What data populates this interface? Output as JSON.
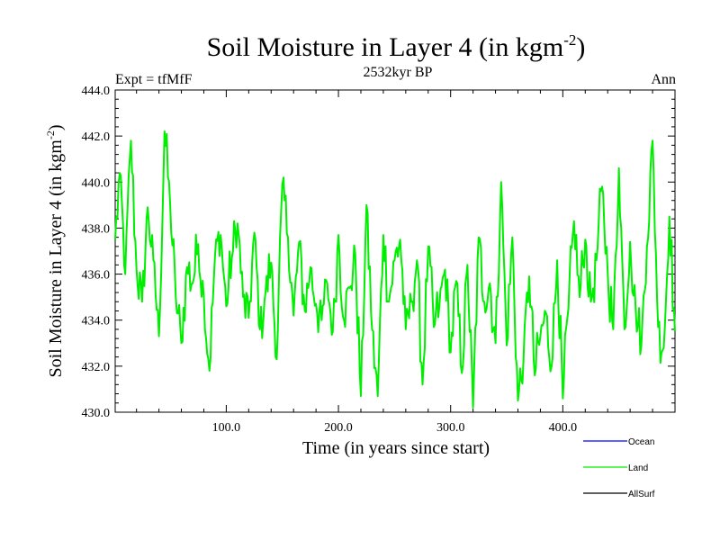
{
  "chart_data": {
    "type": "line",
    "title": "Soil Moisture in Layer 4 (in kgm",
    "title_sup": "-2",
    "title_end": ")",
    "subtitle": "2532kyr BP",
    "left_label": "Expt = tfMfF",
    "right_label": "Ann",
    "xlabel": "Time (in years since start)",
    "ylabel": "Soil Moisture in Layer 4 (in kgm",
    "ylabel_sup": "-2",
    "ylabel_end": ")",
    "xlim": [
      1,
      500
    ],
    "ylim": [
      430.0,
      444.0
    ],
    "x_ticks": [
      100,
      200,
      300,
      400
    ],
    "x_tick_labels": [
      "100.0",
      "200.0",
      "300.0",
      "400.0"
    ],
    "y_ticks": [
      430,
      432,
      434,
      436,
      438,
      440,
      442,
      444
    ],
    "y_tick_labels": [
      "430.0",
      "432.0",
      "434.0",
      "436.0",
      "438.0",
      "440.0",
      "442.0",
      "444.0"
    ],
    "legend": [
      {
        "name": "Ocean",
        "color": "#0000ff"
      },
      {
        "name": "Land",
        "color": "#00ee00"
      },
      {
        "name": "AllSurf",
        "color": "#000000"
      }
    ],
    "series": [
      {
        "name": "Land",
        "color": "#00ee00",
        "x": [
          1,
          5,
          10,
          15,
          20,
          25,
          30,
          35,
          40,
          45,
          50,
          55,
          60,
          65,
          70,
          75,
          80,
          85,
          90,
          95,
          100,
          105,
          110,
          115,
          120,
          125,
          130,
          135,
          140,
          145,
          150,
          155,
          160,
          165,
          170,
          175,
          180,
          185,
          190,
          195,
          200,
          205,
          210,
          215,
          220,
          225,
          230,
          235,
          240,
          245,
          250,
          255,
          260,
          265,
          270,
          275,
          280,
          285,
          290,
          295,
          300,
          305,
          310,
          315,
          320,
          325,
          330,
          335,
          340,
          345,
          350,
          355,
          360,
          365,
          370,
          375,
          380,
          385,
          390,
          395,
          400,
          405,
          410,
          415,
          420,
          425,
          430,
          435,
          440,
          445,
          450,
          455,
          460,
          465,
          470,
          475,
          480,
          485,
          490,
          495,
          500
        ],
        "values": [
          437.5,
          440.4,
          436.0,
          441.8,
          436.2,
          434.8,
          438.9,
          436.6,
          433.3,
          442.2,
          439.0,
          435.0,
          433.0,
          436.3,
          435.6,
          437.3,
          435.0,
          431.8,
          436.8,
          437.7,
          434.6,
          436.7,
          438.2,
          435.0,
          434.1,
          437.8,
          433.6,
          435.2,
          436.5,
          432.3,
          439.9,
          437.6,
          434.2,
          437.4,
          434.4,
          436.3,
          434.7,
          434.0,
          435.6,
          433.5,
          437.7,
          434.0,
          435.4,
          436.9,
          430.7,
          439.0,
          433.6,
          430.7,
          437.7,
          434.8,
          436.6,
          437.5,
          433.6,
          434.8,
          436.6,
          431.2,
          437.2,
          433.7,
          434.6,
          436.2,
          432.6,
          435.7,
          431.7,
          436.4,
          430.2,
          437.6,
          434.8,
          435.6,
          433.0,
          440.0,
          432.9,
          437.6,
          430.5,
          432.3,
          435.9,
          431.6,
          433.3,
          434.3,
          432.0,
          436.6,
          430.6,
          434.5,
          438.3,
          435.0,
          437.5,
          434.8,
          436.6,
          439.8,
          436.1,
          433.6,
          440.6,
          433.6,
          437.4,
          434.4,
          432.9,
          437.2,
          441.8,
          433.7,
          432.8,
          438.5,
          433.5
        ]
      }
    ]
  }
}
